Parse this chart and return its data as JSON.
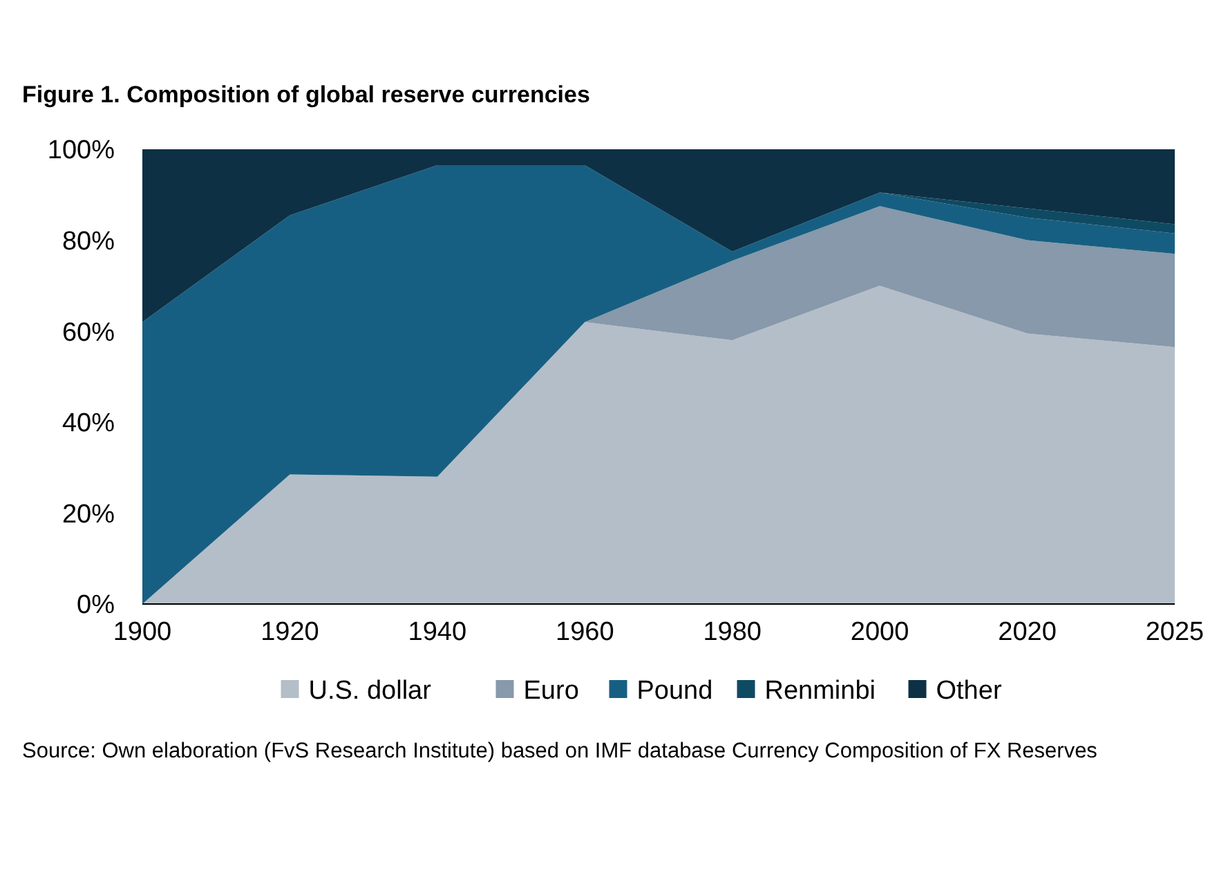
{
  "chart_data": {
    "type": "area",
    "stacked": true,
    "title": "Figure 1. Composition of global reserve currencies",
    "categories": [
      "1900",
      "1920",
      "1940",
      "1960",
      "1980",
      "2000",
      "2020",
      "2025"
    ],
    "series": [
      {
        "name": "U.S. dollar",
        "color": "#b4bec8",
        "values": [
          0,
          28.5,
          28,
          62,
          58,
          70,
          59.5,
          56.5
        ]
      },
      {
        "name": "Euro",
        "color": "#8799aa",
        "values": [
          0,
          0,
          0,
          0,
          17.5,
          17.5,
          20.5,
          20.5
        ]
      },
      {
        "name": "Pound",
        "color": "#175f82",
        "values": [
          62,
          57,
          68.5,
          34.5,
          2,
          3,
          5,
          4.5
        ]
      },
      {
        "name": "Renminbi",
        "color": "#0f4a63",
        "values": [
          0,
          0,
          0,
          0,
          0,
          0,
          2,
          2
        ]
      },
      {
        "name": "Other",
        "color": "#0d3045",
        "values": [
          38,
          14.5,
          3.5,
          3.5,
          22.5,
          9.5,
          13,
          16.5
        ]
      }
    ],
    "ylim": [
      0,
      100
    ],
    "yticks": [
      {
        "value": 0,
        "label": "0%"
      },
      {
        "value": 20,
        "label": "20%"
      },
      {
        "value": 40,
        "label": "40%"
      },
      {
        "value": 60,
        "label": "60%"
      },
      {
        "value": 80,
        "label": "80%"
      },
      {
        "value": 100,
        "label": "100%"
      }
    ],
    "grid": false,
    "legend": "bottom",
    "annotations": [
      "Source: Own elaboration (FvS Research Institute) based on IMF database Currency Composition of FX Reserves"
    ]
  }
}
